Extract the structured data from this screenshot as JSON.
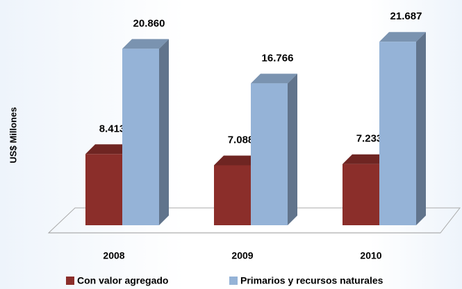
{
  "chart_data": {
    "type": "bar3d",
    "y_axis_label": "US$ Millones",
    "categories": [
      "2008",
      "2009",
      "2010"
    ],
    "ylim": [
      0,
      24000
    ],
    "series": [
      {
        "name": "Con valor agregado",
        "color": "#8b2e2a",
        "values": [
          8413,
          7088,
          7233
        ],
        "value_labels": [
          "8.413",
          "7.088",
          "7.233"
        ]
      },
      {
        "name": "Primarios y recursos naturales",
        "color": "#95b3d7",
        "values": [
          20860,
          16766,
          21687
        ],
        "value_labels": [
          "20.860",
          "16.766",
          "21.687"
        ]
      }
    ],
    "legend": "bottom"
  }
}
